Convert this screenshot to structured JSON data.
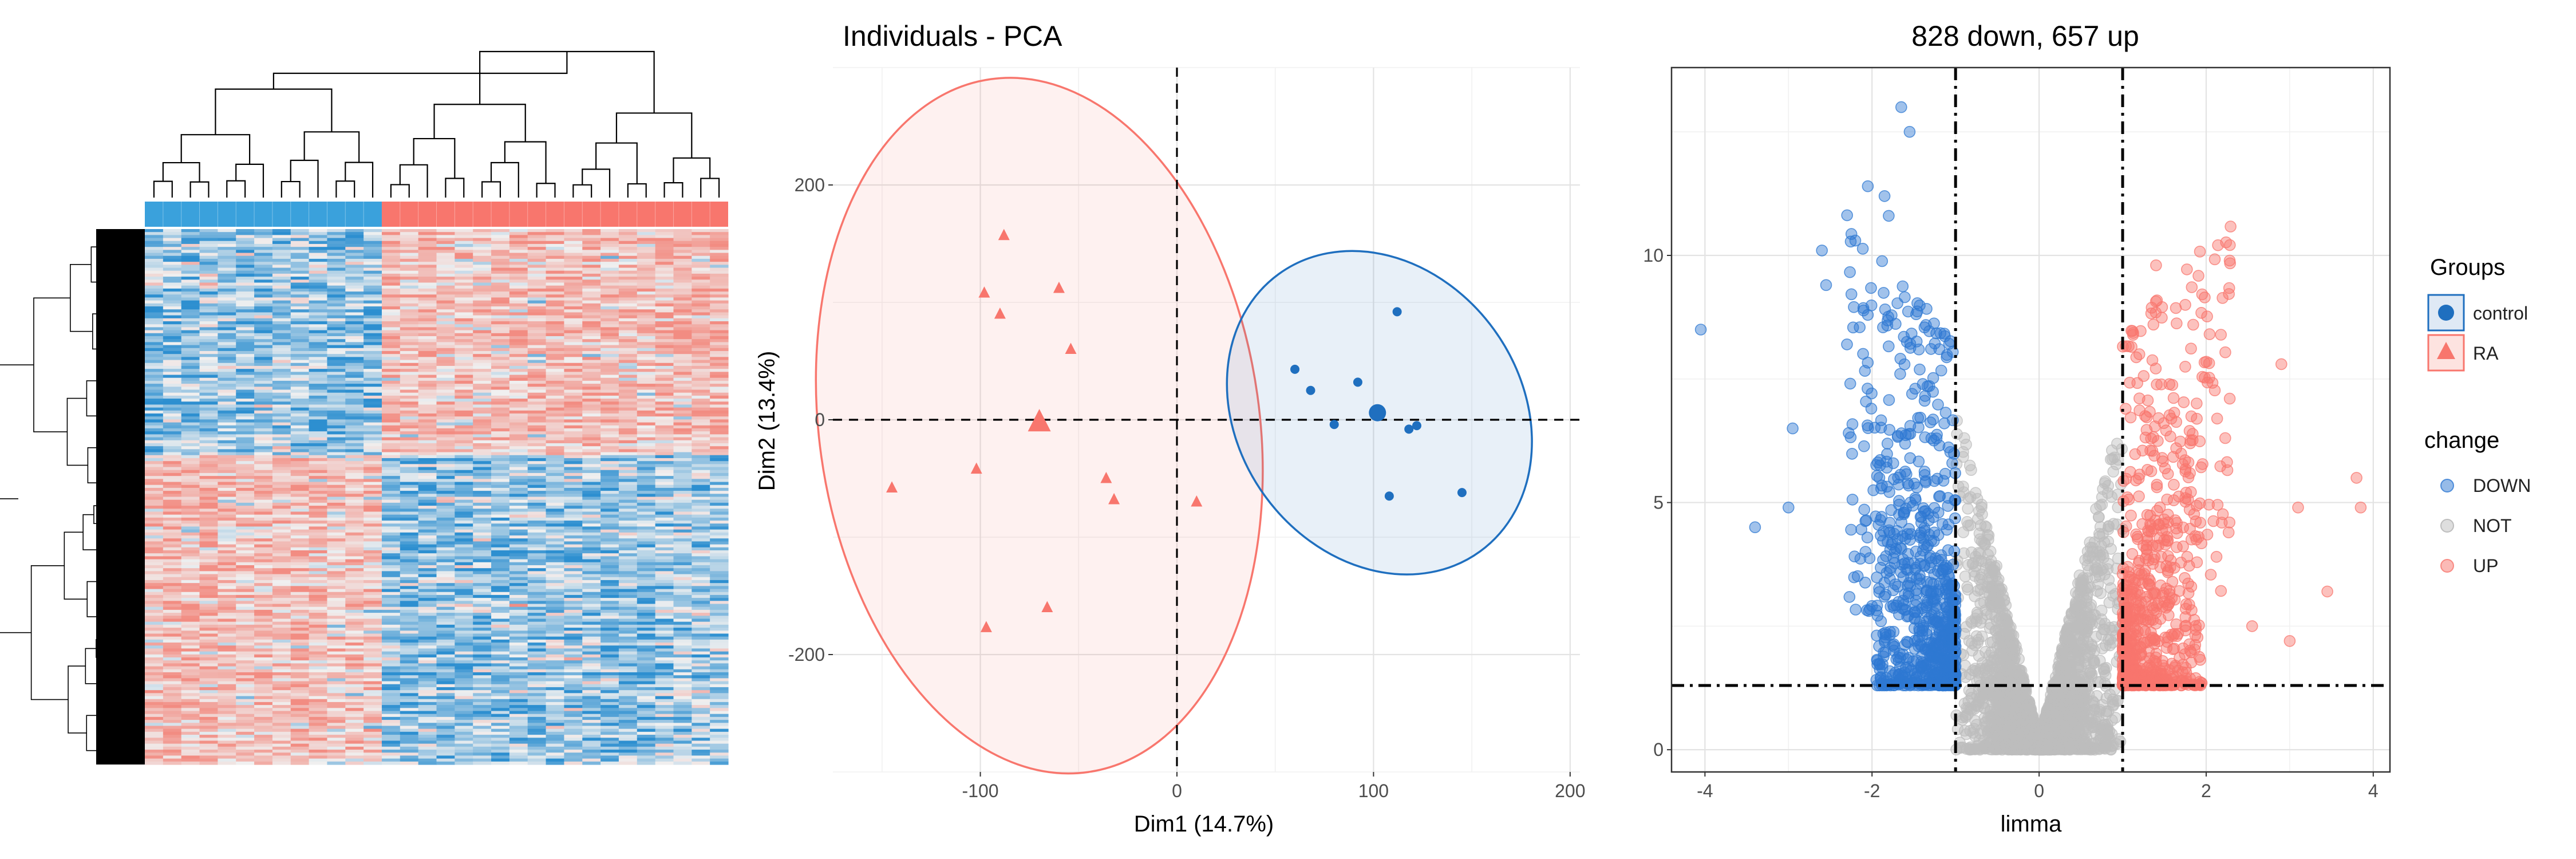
{
  "chart_data": [
    {
      "type": "heatmap",
      "groups": [
        {
          "name": "control",
          "samples": 13,
          "color": "#3aa1dc"
        },
        {
          "name": "RA",
          "samples": 19,
          "color": "#f8766d"
        }
      ],
      "colors": {
        "low": "#2d8fd0",
        "mid": "#f0f0f0",
        "high": "#f28c82",
        "dendrogram": "#000000"
      },
      "row_dendrogram": true,
      "column_dendrogram": true
    },
    {
      "type": "scatter",
      "title": "Individuals - PCA",
      "xlabel": "Dim1 (14.7%)",
      "ylabel": "Dim2 (13.4%)",
      "xlim": [
        -175,
        205
      ],
      "ylim": [
        -300,
        300
      ],
      "xticks": [
        -100,
        0,
        100,
        200
      ],
      "yticks": [
        200,
        0,
        -200
      ],
      "xtick_labels": [
        "-100",
        "0",
        "100",
        "200"
      ],
      "ytick_labels": [
        "200",
        "0",
        "-200"
      ],
      "reference_lines": {
        "x": 0,
        "y": 0
      },
      "grid": true,
      "series": [
        {
          "group": "RA",
          "color": "#f8766d",
          "marker": "triangle",
          "points": [
            [
              -88,
              157
            ],
            [
              -98,
              108
            ],
            [
              -90,
              90
            ],
            [
              -60,
              112
            ],
            [
              -54,
              60
            ],
            [
              -145,
              -58
            ],
            [
              -102,
              -42
            ],
            [
              -36,
              -50
            ],
            [
              -32,
              -68
            ],
            [
              10,
              -70
            ],
            [
              -97,
              -177
            ],
            [
              -66,
              -160
            ]
          ],
          "centroid": [
            -70,
            -2
          ],
          "ellipse": {
            "cx": -70,
            "cy": -5,
            "rx": 112,
            "ry": 298,
            "angle": -8
          }
        },
        {
          "group": "control",
          "color": "#1f6fbf",
          "marker": "circle",
          "points": [
            [
              112,
              92
            ],
            [
              60,
              43
            ],
            [
              68,
              25
            ],
            [
              92,
              32
            ],
            [
              80,
              -4
            ],
            [
              118,
              -8
            ],
            [
              122,
              -5
            ],
            [
              108,
              -65
            ],
            [
              145,
              -62
            ]
          ],
          "centroid": [
            102,
            6
          ],
          "ellipse": {
            "cx": 103,
            "cy": 6,
            "rx": 72,
            "ry": 146,
            "angle": -36
          }
        }
      ]
    },
    {
      "type": "scatter",
      "title": "828 down, 657 up",
      "xlabel": "limma",
      "ylabel": "",
      "xlim": [
        -4.4,
        4.2
      ],
      "ylim": [
        -0.45,
        13.8
      ],
      "xticks": [
        -4,
        -2,
        0,
        2,
        4
      ],
      "yticks": [
        0,
        5,
        10
      ],
      "xtick_labels": [
        "-4",
        "-2",
        "0",
        "2",
        "4"
      ],
      "ytick_labels": [
        "0",
        "5",
        "10"
      ],
      "thresholds": {
        "logFC": [
          -1,
          1
        ],
        "neglog10p": 1.3
      },
      "grid": true,
      "series": [
        {
          "name": "DOWN",
          "color": "#2e78d2",
          "count": 828,
          "points": [
            [
              -4.05,
              8.5
            ],
            [
              -1.65,
              13.0
            ],
            [
              -1.85,
              11.2
            ],
            [
              -1.55,
              12.5
            ],
            [
              -2.05,
              11.4
            ],
            [
              -2.55,
              9.4
            ],
            [
              -2.6,
              10.1
            ],
            [
              -2.95,
              6.5
            ],
            [
              -3.0,
              4.9
            ],
            [
              -3.4,
              4.5
            ],
            [
              -2.2,
              10.3
            ],
            [
              -1.8,
              10.8
            ],
            [
              -2.3,
              8.2
            ]
          ]
        },
        {
          "name": "NOT",
          "color": "#bdbdbd"
        },
        {
          "name": "UP",
          "color": "#f8766d",
          "count": 657,
          "points": [
            [
              1.4,
              9.8
            ],
            [
              1.75,
              9.0
            ],
            [
              2.9,
              7.8
            ],
            [
              3.8,
              5.5
            ],
            [
              3.85,
              4.9
            ],
            [
              3.1,
              4.9
            ],
            [
              3.45,
              3.2
            ],
            [
              3.0,
              2.2
            ],
            [
              2.55,
              2.5
            ],
            [
              1.2,
              8.0
            ]
          ]
        }
      ],
      "legend": {
        "groups_title": "Groups",
        "groups": [
          {
            "label": "control",
            "color": "#1f6fbf",
            "marker": "circle"
          },
          {
            "label": "RA",
            "color": "#f8766d",
            "marker": "triangle"
          }
        ],
        "change_title": "change",
        "change": [
          {
            "label": "DOWN",
            "color": "#2e78d2"
          },
          {
            "label": "NOT",
            "color": "#bdbdbd"
          },
          {
            "label": "UP",
            "color": "#f8766d"
          }
        ],
        "position": "right"
      }
    }
  ]
}
